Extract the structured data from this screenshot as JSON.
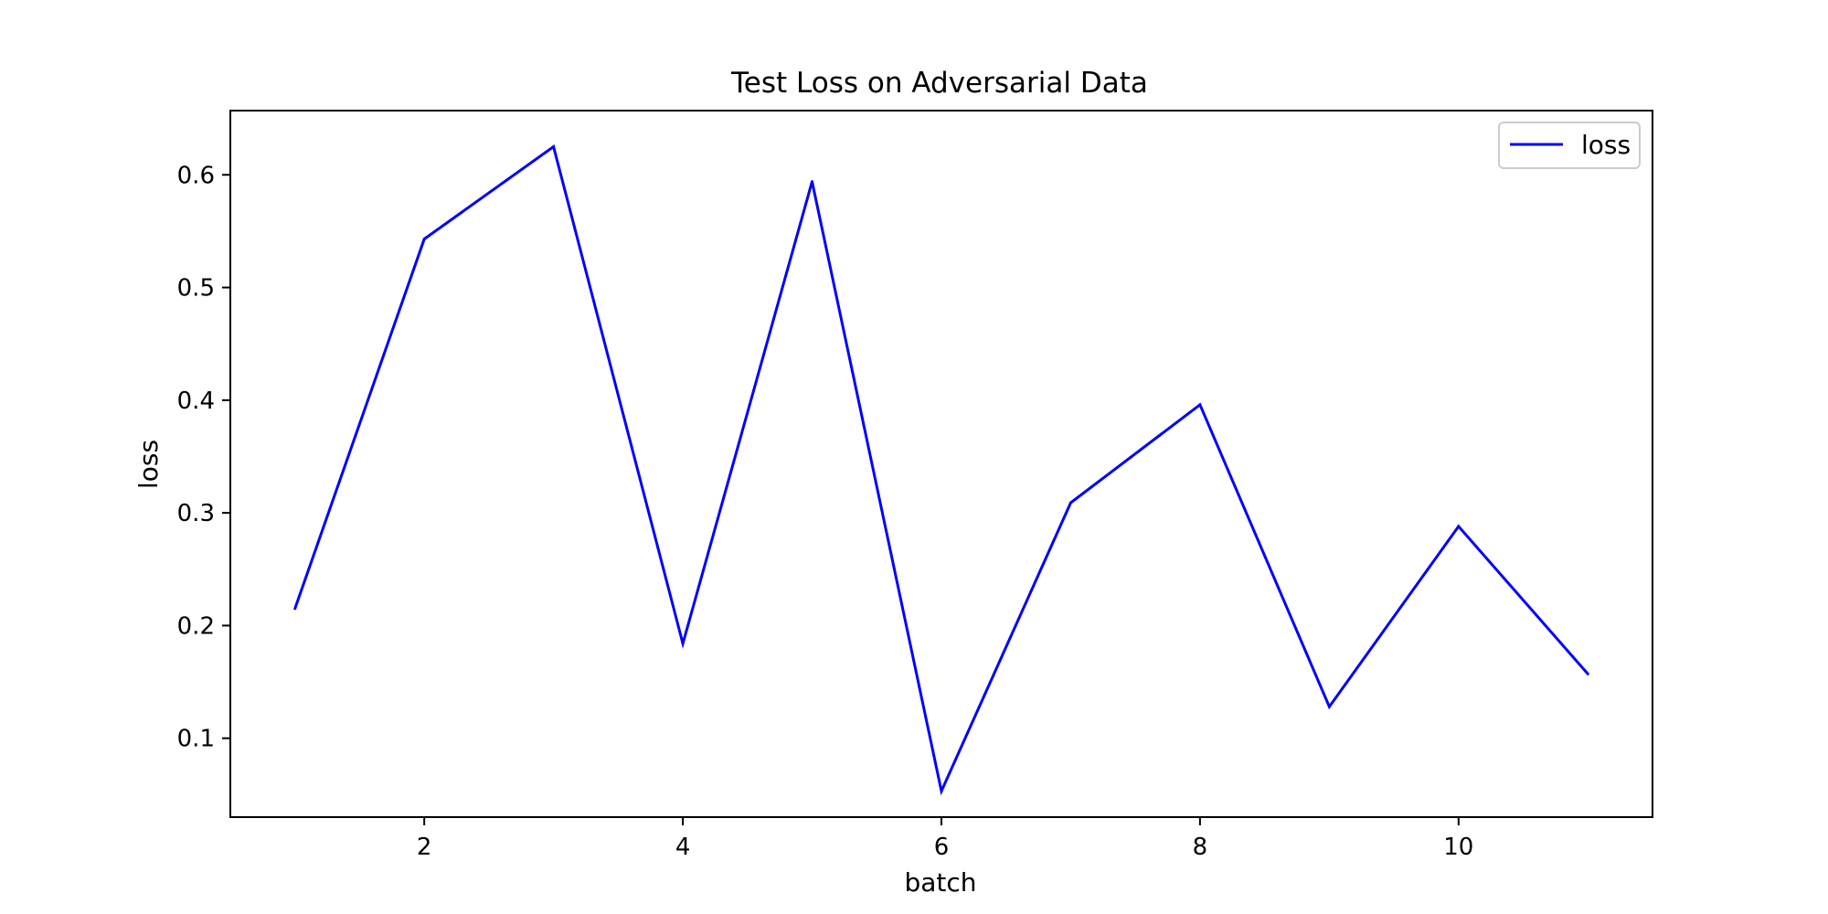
{
  "chart_data": {
    "type": "line",
    "title": "Test Loss on Adversarial Data",
    "xlabel": "batch",
    "ylabel": "loss",
    "xlim": [
      0.5,
      11.5
    ],
    "ylim": [
      0.03,
      0.657
    ],
    "xticks": [
      2,
      4,
      6,
      8,
      10
    ],
    "xtick_labels": [
      "2",
      "4",
      "6",
      "8",
      "10"
    ],
    "yticks": [
      0.1,
      0.2,
      0.3,
      0.4,
      0.5,
      0.6
    ],
    "ytick_labels": [
      "0.1",
      "0.2",
      "0.3",
      "0.4",
      "0.5",
      "0.6"
    ],
    "grid": false,
    "legend_position": "top-right",
    "series": [
      {
        "name": "loss",
        "color": "#0000ff",
        "x": [
          1,
          2,
          3,
          4,
          5,
          6,
          7,
          8,
          9,
          10,
          11
        ],
        "y": [
          0.215,
          0.543,
          0.625,
          0.184,
          0.594,
          0.053,
          0.309,
          0.396,
          0.128,
          0.288,
          0.157
        ]
      }
    ]
  }
}
